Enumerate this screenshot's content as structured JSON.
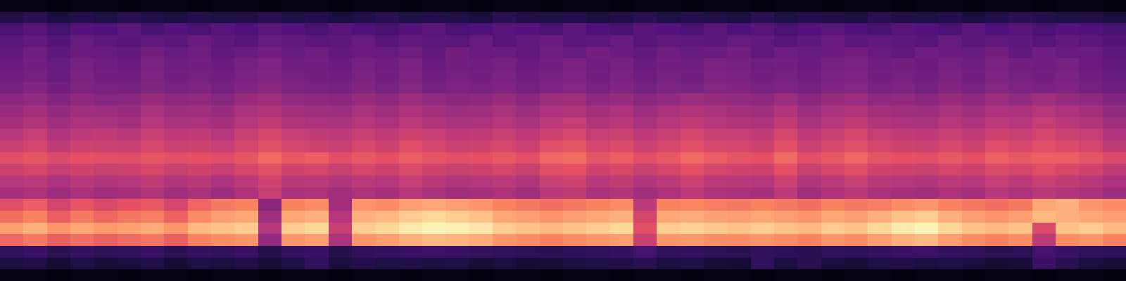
{
  "chart_data": {
    "type": "heatmap",
    "tick_labels": false,
    "zlim": [
      0,
      100
    ],
    "values": [
      [
        3,
        3,
        2,
        3,
        3,
        2,
        3,
        3,
        2,
        3,
        3,
        2,
        3,
        3,
        2,
        3,
        3,
        2,
        3,
        3,
        2,
        3,
        3,
        2,
        3,
        3,
        2,
        3,
        3,
        2,
        3,
        3,
        2,
        3,
        3,
        2,
        3,
        3,
        2,
        3,
        3,
        2,
        3,
        3,
        2,
        3,
        3,
        2
      ],
      [
        14,
        16,
        12,
        15,
        13,
        16,
        14,
        12,
        15,
        13,
        14,
        16,
        13,
        15,
        12,
        14,
        16,
        13,
        15,
        14,
        12,
        16,
        14,
        13,
        15,
        12,
        14,
        16,
        13,
        15,
        14,
        12,
        16,
        13,
        15,
        14,
        12,
        16,
        14,
        13,
        15,
        12,
        14,
        16,
        15,
        13,
        14,
        12
      ],
      [
        24,
        27,
        22,
        26,
        25,
        28,
        23,
        26,
        24,
        27,
        25,
        28,
        26,
        24,
        27,
        25,
        23,
        26,
        28,
        24,
        25,
        27,
        26,
        24,
        28,
        25,
        23,
        27,
        26,
        24,
        28,
        25,
        27,
        24,
        26,
        28,
        25,
        23,
        27,
        26,
        24,
        28,
        25,
        27,
        24,
        26,
        25,
        23
      ],
      [
        28,
        30,
        26,
        31,
        29,
        27,
        30,
        28,
        32,
        29,
        27,
        31,
        30,
        28,
        29,
        31,
        27,
        30,
        29,
        28,
        31,
        27,
        30,
        32,
        28,
        29,
        31,
        27,
        30,
        29,
        28,
        31,
        30,
        27,
        29,
        32,
        28,
        30,
        29,
        27,
        31,
        28,
        30,
        29,
        27,
        30,
        28,
        26
      ],
      [
        30,
        33,
        29,
        32,
        31,
        30,
        34,
        31,
        33,
        30,
        32,
        34,
        31,
        33,
        30,
        32,
        31,
        33,
        30,
        34,
        31,
        32,
        30,
        33,
        31,
        34,
        32,
        30,
        33,
        31,
        32,
        34,
        30,
        33,
        31,
        32,
        34,
        31,
        30,
        33,
        32,
        31,
        34,
        30,
        33,
        31,
        32,
        29
      ],
      [
        32,
        34,
        31,
        35,
        33,
        32,
        36,
        33,
        34,
        32,
        35,
        37,
        33,
        34,
        32,
        35,
        33,
        36,
        32,
        34,
        33,
        35,
        32,
        34,
        36,
        33,
        35,
        32,
        34,
        33,
        36,
        35,
        33,
        34,
        32,
        35,
        36,
        33,
        34,
        32,
        35,
        33,
        36,
        34,
        33,
        35,
        32,
        30
      ],
      [
        33,
        35,
        32,
        36,
        34,
        33,
        37,
        34,
        35,
        33,
        36,
        38,
        35,
        34,
        33,
        36,
        34,
        37,
        33,
        35,
        34,
        36,
        33,
        35,
        37,
        34,
        36,
        33,
        35,
        34,
        37,
        36,
        34,
        35,
        33,
        36,
        37,
        34,
        35,
        33,
        36,
        34,
        37,
        35,
        34,
        36,
        33,
        31
      ],
      [
        35,
        38,
        34,
        37,
        36,
        35,
        38,
        36,
        37,
        35,
        38,
        40,
        37,
        36,
        35,
        38,
        36,
        39,
        35,
        37,
        36,
        38,
        35,
        37,
        39,
        36,
        38,
        35,
        37,
        36,
        39,
        38,
        36,
        37,
        35,
        38,
        39,
        36,
        37,
        35,
        38,
        36,
        39,
        37,
        36,
        38,
        35,
        33
      ],
      [
        40,
        42,
        38,
        41,
        39,
        40,
        43,
        41,
        42,
        39,
        43,
        45,
        42,
        41,
        40,
        43,
        41,
        44,
        42,
        40,
        41,
        43,
        40,
        44,
        45,
        41,
        43,
        40,
        42,
        44,
        43,
        42,
        41,
        44,
        40,
        43,
        44,
        41,
        42,
        40,
        43,
        41,
        44,
        42,
        45,
        43,
        41,
        38
      ],
      [
        43,
        46,
        42,
        45,
        44,
        43,
        47,
        44,
        45,
        43,
        47,
        49,
        46,
        45,
        44,
        47,
        45,
        48,
        46,
        44,
        45,
        47,
        44,
        48,
        49,
        46,
        48,
        44,
        47,
        49,
        47,
        46,
        45,
        49,
        44,
        47,
        49,
        46,
        45,
        44,
        47,
        45,
        48,
        47,
        50,
        48,
        46,
        42
      ],
      [
        46,
        49,
        45,
        48,
        47,
        46,
        50,
        47,
        48,
        46,
        50,
        53,
        49,
        48,
        47,
        50,
        48,
        52,
        49,
        47,
        48,
        50,
        47,
        52,
        54,
        49,
        51,
        47,
        50,
        53,
        50,
        49,
        48,
        53,
        47,
        50,
        53,
        49,
        48,
        47,
        50,
        48,
        52,
        50,
        54,
        51,
        49,
        45
      ],
      [
        50,
        54,
        49,
        52,
        53,
        51,
        55,
        52,
        53,
        50,
        55,
        58,
        54,
        53,
        52,
        55,
        53,
        57,
        54,
        52,
        53,
        55,
        52,
        57,
        59,
        54,
        56,
        52,
        55,
        58,
        55,
        54,
        53,
        58,
        52,
        55,
        58,
        54,
        53,
        52,
        55,
        53,
        57,
        55,
        58,
        56,
        54,
        49
      ],
      [
        55,
        58,
        53,
        57,
        56,
        55,
        59,
        56,
        57,
        54,
        58,
        63,
        58,
        57,
        55,
        59,
        57,
        61,
        58,
        56,
        57,
        59,
        56,
        62,
        64,
        58,
        60,
        56,
        59,
        63,
        59,
        58,
        57,
        63,
        56,
        59,
        62,
        58,
        57,
        56,
        59,
        57,
        61,
        59,
        62,
        60,
        58,
        53
      ],
      [
        62,
        64,
        60,
        63,
        62,
        61,
        64,
        62,
        63,
        61,
        64,
        69,
        65,
        66,
        62,
        65,
        63,
        66,
        64,
        62,
        63,
        65,
        62,
        68,
        70,
        64,
        66,
        62,
        65,
        69,
        66,
        64,
        63,
        69,
        62,
        65,
        68,
        64,
        63,
        62,
        65,
        63,
        67,
        65,
        66,
        66,
        64,
        60
      ],
      [
        56,
        58,
        54,
        57,
        55,
        56,
        59,
        55,
        57,
        54,
        58,
        62,
        57,
        58,
        55,
        58,
        56,
        60,
        57,
        55,
        56,
        58,
        55,
        61,
        63,
        57,
        59,
        55,
        58,
        62,
        58,
        57,
        56,
        62,
        55,
        58,
        61,
        57,
        56,
        55,
        58,
        56,
        60,
        58,
        61,
        59,
        57,
        53
      ],
      [
        50,
        52,
        48,
        51,
        49,
        50,
        53,
        49,
        51,
        48,
        52,
        57,
        51,
        52,
        49,
        52,
        50,
        54,
        51,
        49,
        50,
        52,
        49,
        55,
        57,
        51,
        53,
        49,
        52,
        56,
        52,
        51,
        50,
        56,
        49,
        52,
        55,
        51,
        50,
        49,
        52,
        50,
        54,
        52,
        55,
        53,
        51,
        48
      ],
      [
        46,
        48,
        44,
        47,
        45,
        46,
        49,
        45,
        47,
        44,
        48,
        54,
        47,
        48,
        45,
        48,
        46,
        50,
        47,
        45,
        46,
        48,
        45,
        51,
        53,
        47,
        49,
        45,
        48,
        52,
        48,
        47,
        46,
        52,
        45,
        48,
        51,
        47,
        46,
        45,
        48,
        46,
        50,
        48,
        51,
        49,
        47,
        44
      ],
      [
        62,
        66,
        58,
        64,
        60,
        63,
        65,
        59,
        68,
        72,
        74,
        40,
        74,
        76,
        45,
        78,
        76,
        80,
        82,
        80,
        78,
        74,
        72,
        70,
        72,
        74,
        76,
        52,
        74,
        75,
        73,
        72,
        74,
        72,
        70,
        74,
        72,
        73,
        76,
        78,
        74,
        72,
        70,
        72,
        82,
        84,
        78,
        76
      ],
      [
        70,
        74,
        66,
        72,
        68,
        71,
        73,
        67,
        76,
        80,
        82,
        45,
        82,
        84,
        50,
        84,
        86,
        90,
        92,
        90,
        88,
        82,
        80,
        78,
        80,
        82,
        84,
        58,
        82,
        83,
        81,
        80,
        82,
        80,
        78,
        82,
        80,
        84,
        88,
        90,
        84,
        80,
        78,
        80,
        86,
        84,
        82,
        80
      ],
      [
        80,
        84,
        78,
        82,
        79,
        81,
        83,
        78,
        86,
        88,
        90,
        50,
        90,
        92,
        55,
        90,
        92,
        96,
        98,
        97,
        95,
        90,
        88,
        86,
        88,
        90,
        92,
        62,
        90,
        91,
        89,
        88,
        90,
        88,
        86,
        90,
        88,
        92,
        96,
        98,
        92,
        88,
        86,
        88,
        60,
        88,
        90,
        86
      ],
      [
        68,
        72,
        66,
        70,
        67,
        69,
        71,
        66,
        74,
        76,
        78,
        42,
        78,
        80,
        48,
        78,
        80,
        84,
        86,
        85,
        83,
        78,
        76,
        74,
        76,
        78,
        80,
        55,
        78,
        79,
        77,
        76,
        78,
        76,
        74,
        78,
        76,
        80,
        84,
        86,
        80,
        76,
        74,
        76,
        52,
        76,
        78,
        74
      ],
      [
        18,
        20,
        16,
        19,
        17,
        18,
        20,
        16,
        19,
        18,
        20,
        15,
        19,
        20,
        15,
        18,
        19,
        20,
        21,
        20,
        19,
        18,
        17,
        16,
        17,
        18,
        19,
        22,
        18,
        19,
        17,
        16,
        18,
        17,
        16,
        18,
        17,
        19,
        20,
        21,
        19,
        18,
        16,
        17,
        22,
        20,
        18,
        17
      ],
      [
        12,
        14,
        10,
        13,
        11,
        12,
        14,
        10,
        13,
        12,
        14,
        11,
        13,
        18,
        12,
        15,
        13,
        14,
        12,
        13,
        11,
        12,
        10,
        11,
        12,
        13,
        14,
        16,
        12,
        13,
        11,
        10,
        18,
        12,
        16,
        12,
        11,
        13,
        14,
        12,
        13,
        12,
        10,
        11,
        20,
        16,
        12,
        11
      ],
      [
        3,
        3,
        2,
        3,
        3,
        2,
        3,
        3,
        2,
        3,
        3,
        2,
        3,
        3,
        2,
        3,
        3,
        2,
        3,
        3,
        2,
        3,
        3,
        2,
        3,
        3,
        2,
        3,
        3,
        2,
        3,
        3,
        2,
        3,
        3,
        2,
        3,
        3,
        2,
        3,
        3,
        2,
        3,
        3,
        2,
        3,
        3,
        2
      ]
    ]
  }
}
